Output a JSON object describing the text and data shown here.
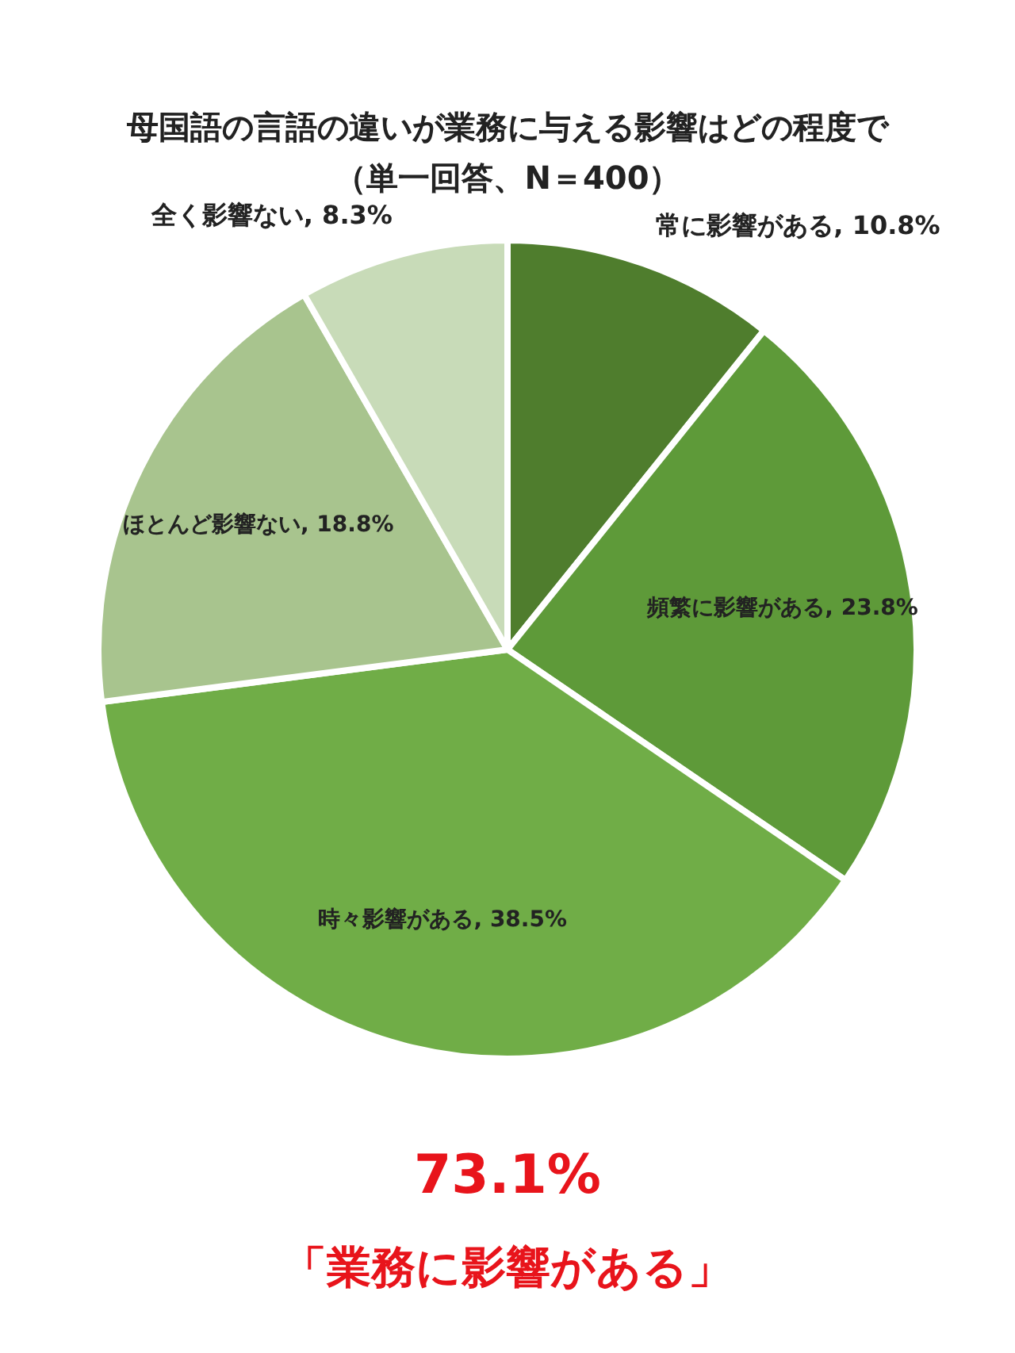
{
  "chart_data": {
    "type": "pie",
    "title": "母国語の言語の違いが業務に与える影響はどの程度で",
    "subtitle": "（単一回答、N＝400）",
    "categories": [
      "常に影響がある",
      "頻繁に影響がある",
      "時々影響がある",
      "ほとんど影響ない",
      "全く影響ない"
    ],
    "value_labels": [
      "10.8%",
      "23.8%",
      "38.5%",
      "18.8%",
      "8.3%"
    ],
    "values": [
      10.8,
      23.8,
      38.5,
      18.8,
      8.3
    ],
    "colors": [
      "#4f7d2d",
      "#5e9a39",
      "#70ad47",
      "#a8c48e",
      "#c8dbb8"
    ],
    "legend": false,
    "annotations": [
      "73.1%",
      "「業務に影響がある」"
    ]
  }
}
